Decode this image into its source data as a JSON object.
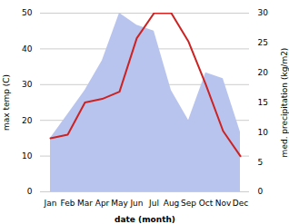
{
  "chart_data": {
    "type": "line",
    "categories": [
      "Jan",
      "Feb",
      "Mar",
      "Apr",
      "May",
      "Jun",
      "Jul",
      "Aug",
      "Sep",
      "Oct",
      "Nov",
      "Dec"
    ],
    "xlabel": "date (month)",
    "ylabel": "max temp (C)",
    "y2label": "med. precipitation (kg/m2)",
    "ylim": [
      0,
      50
    ],
    "yticks": [
      0,
      10,
      20,
      30,
      40,
      50
    ],
    "y2lim": [
      0,
      30
    ],
    "y2ticks": [
      0,
      5,
      10,
      15,
      20,
      25,
      30
    ],
    "grid": true,
    "series": [
      {
        "type": "area",
        "axis": "y2",
        "color": "#b8c4ee",
        "values": [
          9,
          13,
          17,
          22,
          30,
          28,
          27,
          17,
          12,
          20,
          19,
          10
        ]
      },
      {
        "type": "line",
        "color": "#cc2222",
        "values": [
          15,
          16,
          25,
          26,
          28,
          43,
          50,
          50,
          42,
          30,
          17,
          10
        ]
      }
    ]
  }
}
